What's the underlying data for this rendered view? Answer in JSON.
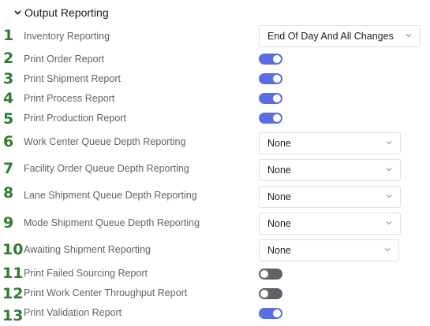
{
  "section": {
    "title": "Output Reporting",
    "chevron_icon": "chevron-down-icon"
  },
  "rows": [
    {
      "num": "1",
      "label": "Inventory Reporting",
      "control": "select",
      "value": "End Of Day And All Changes"
    },
    {
      "num": "2",
      "label": "Print Order Report",
      "control": "toggle",
      "on": true
    },
    {
      "num": "3",
      "label": "Print Shipment Report",
      "control": "toggle",
      "on": true
    },
    {
      "num": "4",
      "label": "Print Process Report",
      "control": "toggle",
      "on": true
    },
    {
      "num": "5",
      "label": "Print Production Report",
      "control": "toggle",
      "on": true
    },
    {
      "num": "6",
      "label": "Work Center Queue Depth Reporting",
      "control": "select",
      "value": "None"
    },
    {
      "num": "7",
      "label": "Facility Order Queue Depth Reporting",
      "control": "select",
      "value": "None"
    },
    {
      "num": "8",
      "label": "Lane Shipment Queue Depth Reporting",
      "control": "select",
      "value": "None"
    },
    {
      "num": "9",
      "label": "Mode Shipment Queue Depth Reporting",
      "control": "select",
      "value": "None"
    },
    {
      "num": "10",
      "label": "Awaiting Shipment Reporting",
      "control": "select",
      "value": "None"
    },
    {
      "num": "11",
      "label": "Print Failed Sourcing Report",
      "control": "toggle",
      "on": false
    },
    {
      "num": "12",
      "label": "Print Work Center Throughput Report",
      "control": "toggle",
      "on": false
    },
    {
      "num": "13",
      "label": "Print Validation Report",
      "control": "toggle",
      "on": true
    }
  ],
  "colors": {
    "toggle_on": "#5b6ee1",
    "toggle_off": "#5f6368",
    "annotation_number": "#2e7d32"
  }
}
